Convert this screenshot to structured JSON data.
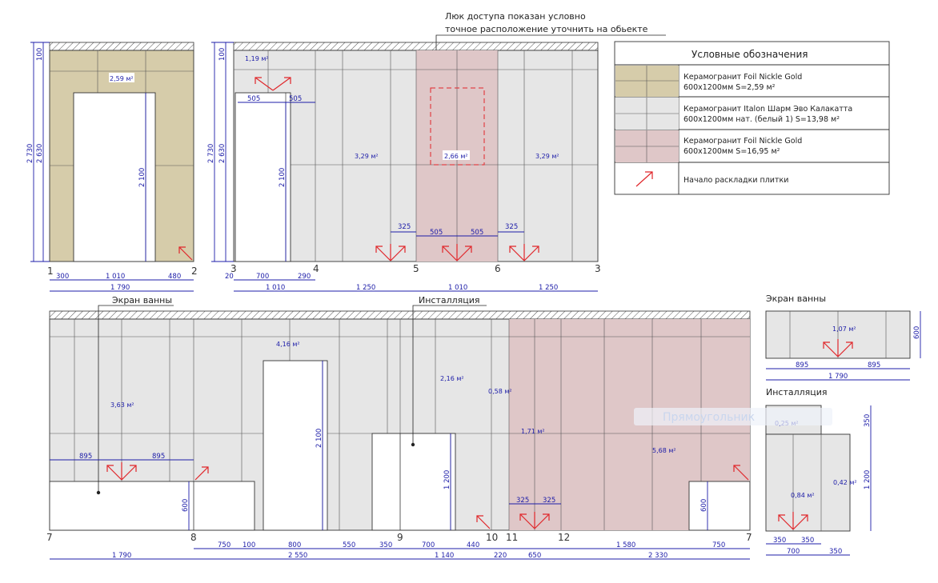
{
  "colors": {
    "gold": "#d6ccaa",
    "grey": "#e6e6e6",
    "pink": "#dfc7c8",
    "dim": "#1c1ca8",
    "arrow": "#e0262a",
    "hatch_bg": "#ffffff"
  },
  "notes": {
    "access_hatch_line1": "Люк доступа показан условно",
    "access_hatch_line2": "точное расположение уточнить на обьекте",
    "bath_screen": "Экран ванны",
    "installation": "Инсталляция",
    "bath_screen_detail": "Экран ванны",
    "installation_detail": "Инсталляция",
    "watermark": "Прямоугольник"
  },
  "legend": {
    "title": "Условные обозначения",
    "items": [
      {
        "line1": "Керамогранит Foil Nickle Gold",
        "line2": "600х1200мм S=2,59 м²"
      },
      {
        "line1": "Керамогранит Italon Шарм Эво Калакатта",
        "line2": "600х1200мм нат. (белый 1)  S=13,98 м²"
      },
      {
        "line1": "Керамогранит Foil Nickle Gold",
        "line2": "600х1200мм S=16,95 м²"
      },
      {
        "line1": "Начало раскладки плитки",
        "line2": ""
      }
    ]
  },
  "walls": {
    "w1": {
      "area": "2,59 м²",
      "axes": [
        "1",
        "2"
      ],
      "v_dims": [
        "100",
        "2 730",
        "2 630",
        "2 100"
      ],
      "h_dims": [
        "300",
        "1 010",
        "480",
        "1 790"
      ]
    },
    "w2": {
      "areas": [
        "1,19 м²",
        "3,29 м²",
        "2,66 м²",
        "3,29 м²"
      ],
      "axes": [
        "3",
        "4",
        "5",
        "6",
        "3"
      ],
      "v_dims": [
        "100",
        "2 730",
        "2 630",
        "2 100"
      ],
      "inner_dims": [
        "505",
        "505",
        "325",
        "505",
        "505",
        "325"
      ],
      "h_dims": [
        "20",
        "700",
        "290",
        "1 010",
        "1 250",
        "1 010",
        "1 250"
      ]
    },
    "w3": {
      "areas": [
        "3,63 м²",
        "4,16 м²",
        "2,16 м²",
        "0,58 м²",
        "1,71 м²",
        "5,68 м²"
      ],
      "axes": [
        "7",
        "8",
        "9",
        "10",
        "11",
        "12",
        "7"
      ],
      "inner_dims": [
        "895",
        "895",
        "325",
        "325"
      ],
      "v_dims": [
        "2 100",
        "1 200",
        "600",
        "600"
      ],
      "h_dims1": [
        "750",
        "100",
        "800",
        "550",
        "350",
        "700",
        "440",
        "1 580",
        "750"
      ],
      "h_dims2": [
        "1 790",
        "2 550",
        "1 140",
        "220",
        "650",
        "2 330"
      ]
    },
    "screen": {
      "area": "1,07 м²",
      "v_dim": "600",
      "h_dims": [
        "895",
        "895",
        "1 790"
      ]
    },
    "install": {
      "areas": [
        "0,25 м²",
        "0,84 м²",
        "0,42 м²"
      ],
      "v_dims": [
        "350",
        "1 200"
      ],
      "h_dims": [
        "350",
        "350",
        "700",
        "350"
      ]
    }
  }
}
